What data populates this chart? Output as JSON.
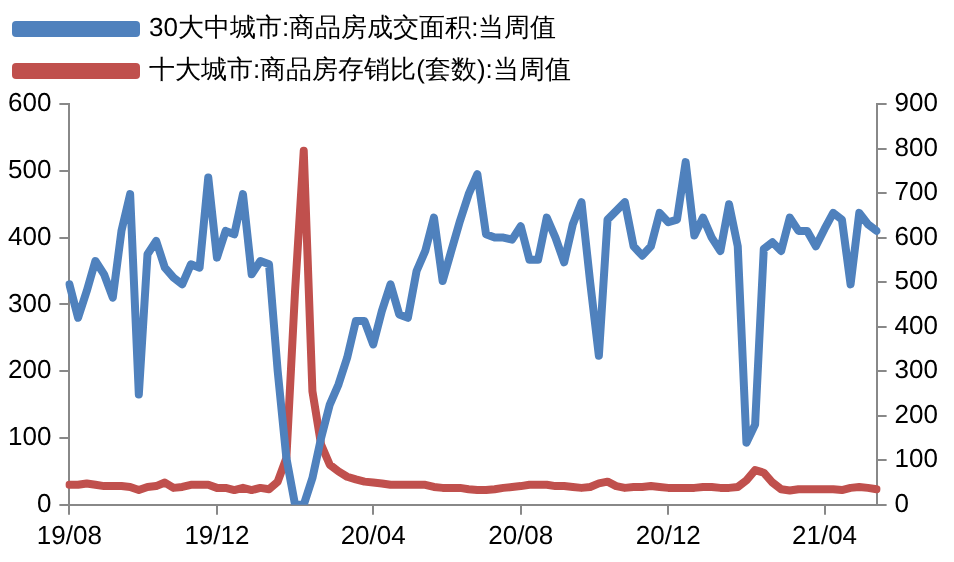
{
  "chart_data": {
    "type": "line",
    "categories": [
      "19/08",
      null,
      null,
      null,
      null,
      null,
      null,
      null,
      null,
      null,
      null,
      null,
      null,
      null,
      null,
      null,
      null,
      "19/12",
      null,
      null,
      null,
      null,
      null,
      null,
      null,
      null,
      null,
      null,
      null,
      null,
      null,
      null,
      null,
      null,
      null,
      "20/04",
      null,
      null,
      null,
      null,
      null,
      null,
      null,
      null,
      null,
      null,
      null,
      null,
      null,
      null,
      null,
      null,
      "20/08",
      null,
      null,
      null,
      null,
      null,
      null,
      null,
      null,
      null,
      null,
      null,
      null,
      null,
      null,
      null,
      null,
      "20/12",
      null,
      null,
      null,
      null,
      null,
      null,
      null,
      null,
      null,
      null,
      null,
      null,
      null,
      null,
      null,
      null,
      null,
      "21/04",
      null,
      null,
      null,
      null,
      null,
      null
    ],
    "series": [
      {
        "name": "30大中城市:商品房成交面积:当周值",
        "color": "#4f81bd",
        "values": [
          330,
          280,
          320,
          365,
          345,
          310,
          410,
          465,
          165,
          375,
          395,
          355,
          340,
          330,
          360,
          355,
          490,
          370,
          410,
          405,
          465,
          345,
          365,
          360,
          200,
          70,
          0,
          0,
          40,
          100,
          150,
          180,
          220,
          275,
          275,
          240,
          290,
          330,
          285,
          280,
          350,
          380,
          430,
          335,
          380,
          425,
          465,
          495,
          405,
          400,
          400,
          397,
          417,
          367,
          367,
          430,
          400,
          363,
          420,
          453,
          333,
          223,
          427,
          440,
          453,
          387,
          373,
          387,
          437,
          423,
          427,
          513,
          403,
          430,
          400,
          380,
          450,
          387,
          93,
          120,
          383,
          393,
          380,
          430,
          410,
          410,
          387,
          413,
          437,
          427,
          330,
          437,
          420,
          410
        ]
      },
      {
        "name": "十大城市:商品房存销比(套数):当周值",
        "color": "#c0504d",
        "axis": "y2",
        "values": [
          45,
          45,
          48,
          45,
          42,
          42,
          42,
          40,
          33,
          40,
          42,
          50,
          38,
          40,
          45,
          45,
          45,
          38,
          38,
          33,
          38,
          33,
          38,
          35,
          52,
          105,
          480,
          795,
          255,
          135,
          90,
          75,
          63,
          57,
          52,
          50,
          48,
          45,
          45,
          45,
          45,
          45,
          40,
          38,
          38,
          38,
          35,
          33,
          33,
          35,
          38,
          40,
          42,
          45,
          45,
          45,
          42,
          42,
          40,
          38,
          40,
          48,
          52,
          42,
          38,
          40,
          40,
          42,
          40,
          38,
          38,
          38,
          38,
          40,
          40,
          38,
          38,
          40,
          55,
          78,
          72,
          50,
          35,
          32,
          35,
          35,
          35,
          35,
          35,
          33,
          38,
          40,
          38,
          35
        ]
      }
    ],
    "ylim": [
      0,
      600
    ],
    "yticks": [
      0,
      100,
      200,
      300,
      400,
      500,
      600
    ],
    "y2lim": [
      0,
      900
    ],
    "y2ticks": [
      0,
      100,
      200,
      300,
      400,
      500,
      600,
      700,
      800,
      900
    ],
    "legend": "top",
    "grid": false,
    "marker": "none",
    "line_style": "solid"
  }
}
